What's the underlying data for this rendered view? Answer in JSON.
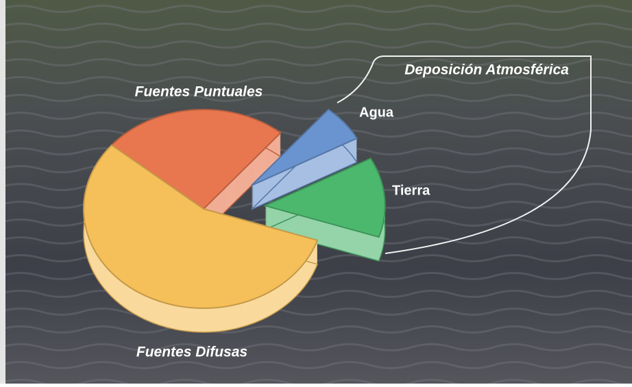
{
  "chart_data": {
    "type": "pie",
    "categories": [
      "Fuentes Puntuales",
      "Agua",
      "Tierra",
      "Fuentes Difusas"
    ],
    "values": [
      25,
      6,
      13,
      56
    ],
    "colors": [
      "#e8774f",
      "#6a94cf",
      "#4cb86e",
      "#f5bf5a"
    ],
    "annotation": "Deposición Atmosférica"
  }
}
